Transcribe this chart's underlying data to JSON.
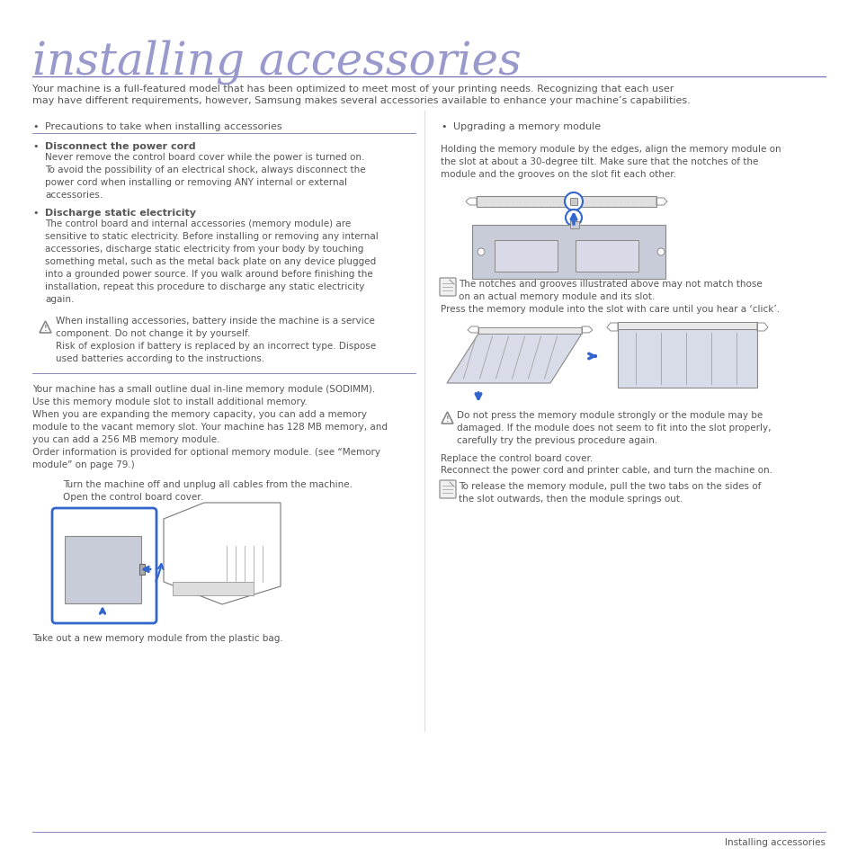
{
  "title": "installing accessories",
  "title_color": "#9999cc",
  "title_underline_color": "#6666aa",
  "bg_color": "#ffffff",
  "body_text_color": "#555555",
  "dark_text_color": "#333333",
  "intro_text1": "Your machine is a full-featured model that has been optimized to meet most of your printing needs. Recognizing that each user",
  "intro_text2": "may have different requirements, however, Samsung makes several accessories available to enhance your machine’s capabilities.",
  "left_col_header": "Precautions to take when installing accessories",
  "right_col_header": "Upgrading a memory module",
  "footer_text": "Installing accessories",
  "body1_bold": "Disconnect the power cord",
  "body1_text": "Never remove the control board cover while the power is turned on.\nTo avoid the possibility of an electrical shock, always disconnect the\npower cord when installing or removing ANY internal or external\naccessories.",
  "body2_bold": "Discharge static electricity",
  "body2_text": "The control board and internal accessories (memory module) are\nsensitive to static electricity. Before installing or removing any internal\naccessories, discharge static electricity from your body by touching\nsomething metal, such as the metal back plate on any device plugged\ninto a grounded power source. If you walk around before finishing the\ninstallation, repeat this procedure to discharge any static electricity\nagain.",
  "warning1_text": "When installing accessories, battery inside the machine is a service\ncomponent. Do not change it by yourself.\nRisk of explosion if battery is replaced by an incorrect type. Dispose\nused batteries according to the instructions.",
  "sodimm_text": "Your machine has a small outline dual in-line memory module (SODIMM).\nUse this memory module slot to install additional memory.\nWhen you are expanding the memory capacity, you can add a memory\nmodule to the vacant memory slot. Your machine has 128 MB memory, and\nyou can add a 256 MB memory module.\nOrder information is provided for optional memory module. (see “Memory\nmodule” on page 79.)",
  "step1_text": "Turn the machine off and unplug all cables from the machine.\nOpen the control board cover.",
  "step2_text": "Take out a new memory module from the plastic bag.",
  "right_upgrade_intro": "Holding the memory module by the edges, align the memory module on\nthe slot at about a 30-degree tilt. Make sure that the notches of the\nmodule and the grooves on the slot fit each other.",
  "right_note": "The notches and grooves illustrated above may not match those\non an actual memory module and its slot.",
  "right_press": "Press the memory module into the slot with care until you hear a ‘click’.",
  "right_warning": "Do not press the memory module strongly or the module may be\ndamaged. If the module does not seem to fit into the slot properly,\ncarefully try the previous procedure again.",
  "right_replace": "Replace the control board cover.",
  "right_reconnect": "Reconnect the power cord and printer cable, and turn the machine on.",
  "right_note2": "To release the memory module, pull the two tabs on the sides of\nthe slot outwards, then the module springs out.",
  "blue_color": "#3366cc",
  "line_color": "#8888bb",
  "warn_color": "#888888",
  "note_icon_color": "#666688"
}
